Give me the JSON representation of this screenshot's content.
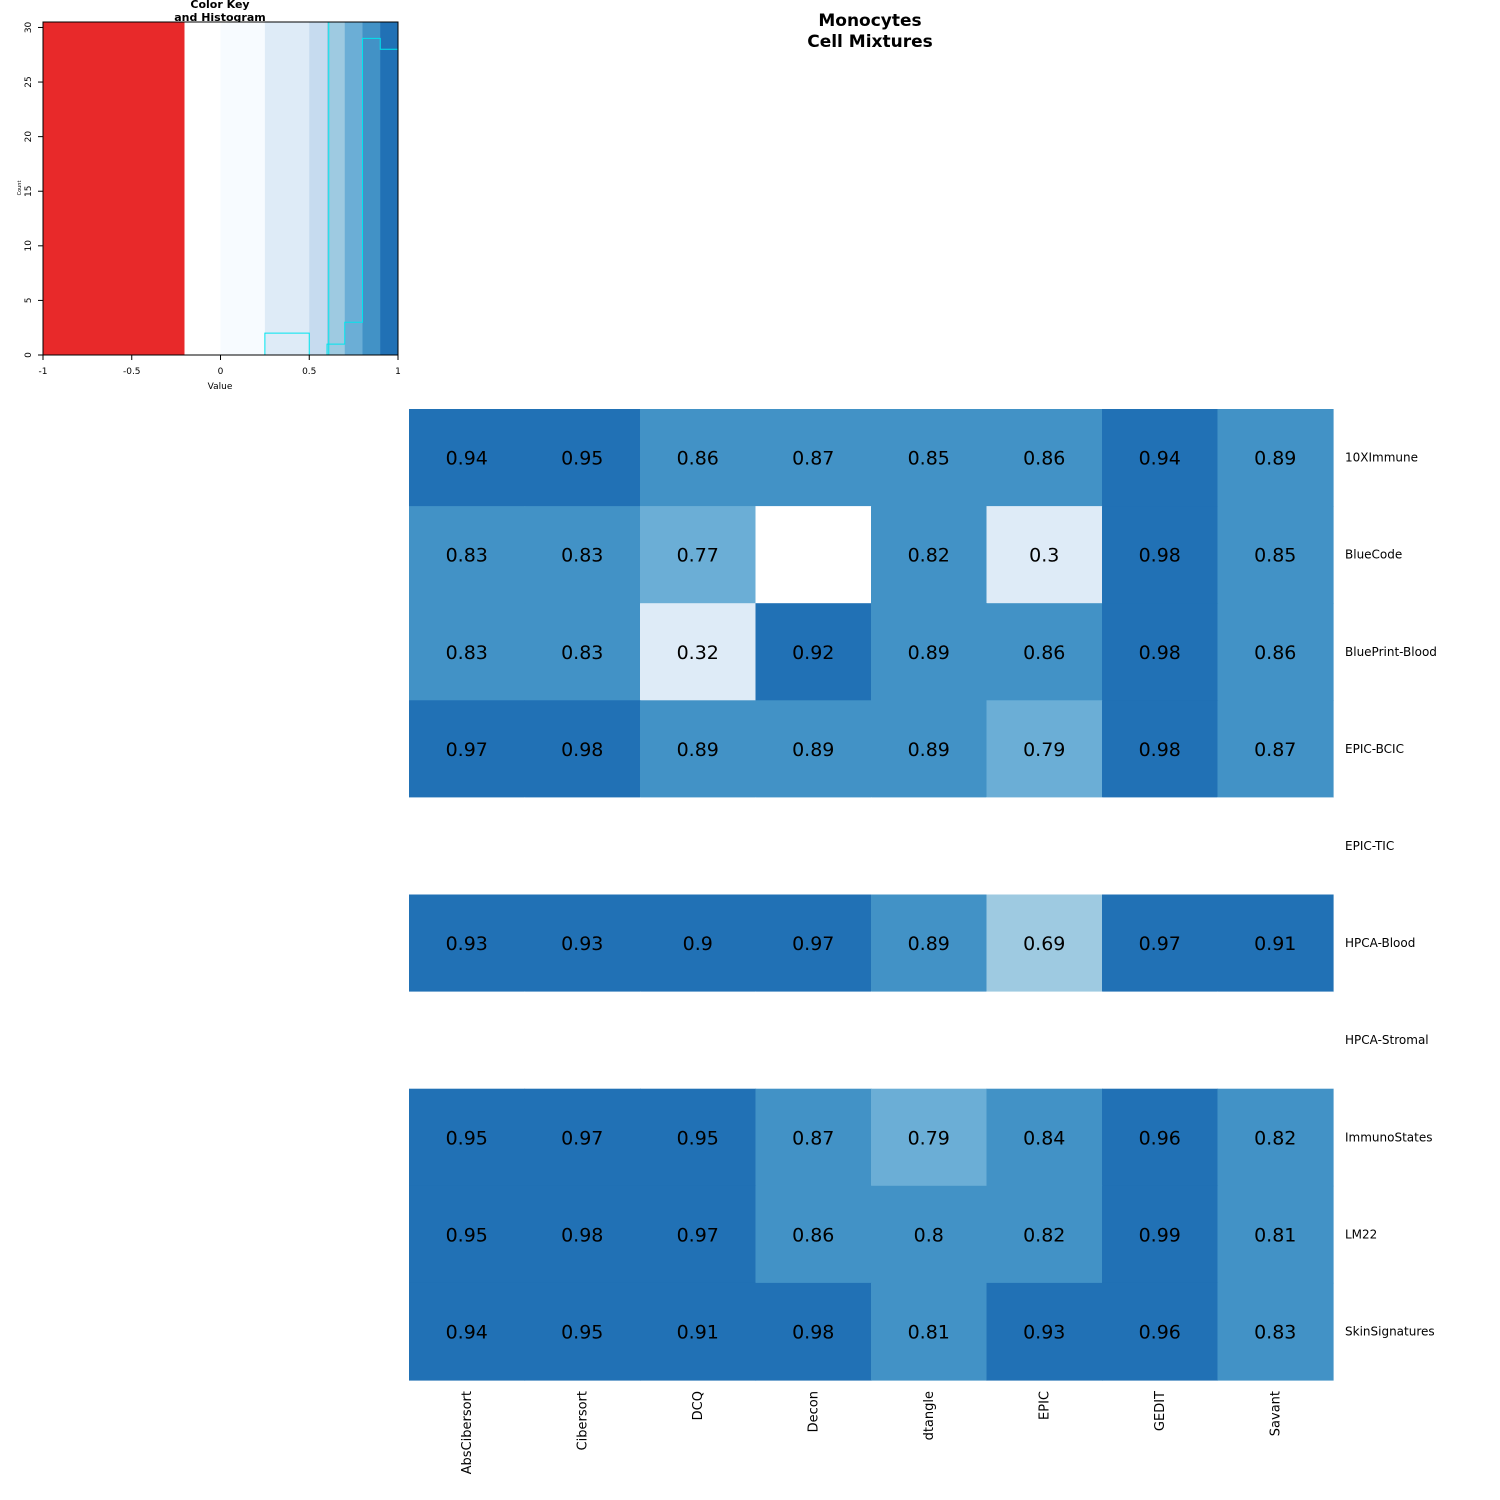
{
  "title_line1": "Monocytes",
  "title_line2": "Cell Mixtures",
  "chart_data": [
    {
      "type": "heatmap",
      "title": "Monocytes Cell Mixtures",
      "columns": [
        "AbsCibersort",
        "Cibersort",
        "DCQ",
        "Decon",
        "dtangle",
        "EPIC",
        "GEDIT",
        "Savant"
      ],
      "rows": [
        "10XImmune",
        "BlueCode",
        "BluePrint-Blood",
        "EPIC-BCIC",
        "EPIC-TIC",
        "HPCA-Blood",
        "HPCA-Stromal",
        "ImmunoStates",
        "LM22",
        "SkinSignatures"
      ],
      "values": [
        [
          0.94,
          0.95,
          0.86,
          0.87,
          0.85,
          0.86,
          0.94,
          0.89
        ],
        [
          0.83,
          0.83,
          0.77,
          null,
          0.82,
          0.3,
          0.98,
          0.85
        ],
        [
          0.83,
          0.83,
          0.32,
          0.92,
          0.89,
          0.86,
          0.98,
          0.86
        ],
        [
          0.97,
          0.98,
          0.89,
          0.89,
          0.89,
          0.79,
          0.98,
          0.87
        ],
        [
          null,
          null,
          null,
          null,
          null,
          null,
          null,
          null
        ],
        [
          0.93,
          0.93,
          0.9,
          0.97,
          0.89,
          0.69,
          0.97,
          0.91
        ],
        [
          null,
          null,
          null,
          null,
          null,
          null,
          null,
          null
        ],
        [
          0.95,
          0.97,
          0.95,
          0.87,
          0.79,
          0.84,
          0.96,
          0.82
        ],
        [
          0.95,
          0.98,
          0.97,
          0.86,
          0.8,
          0.82,
          0.99,
          0.81
        ],
        [
          0.94,
          0.95,
          0.91,
          0.98,
          0.81,
          0.93,
          0.96,
          0.83
        ]
      ],
      "color_breaks": [
        -1,
        -0.2,
        0,
        0.25,
        0.5,
        0.6,
        0.7,
        0.8,
        0.9,
        1
      ],
      "colors": [
        "#e8292a",
        "#ffffff",
        "#f7fbff",
        "#deebf7",
        "#c6dbef",
        "#9ecae1",
        "#6baed6",
        "#4292c6",
        "#2171b5"
      ],
      "missing_color": "#ffffff"
    },
    {
      "type": "histogram",
      "title": "Color Key\nand Histogram",
      "xlabel": "Value",
      "ylabel": "Count",
      "xlim": [
        -1,
        1
      ],
      "ylim": [
        0,
        30.5
      ],
      "x_ticks": [
        "-1",
        "-0.5",
        "0",
        "0.5",
        "1"
      ],
      "y_ticks": [
        "0",
        "5",
        "10",
        "15",
        "20",
        "25",
        "30"
      ],
      "bin_edges": [
        -1,
        -0.2,
        0,
        0.25,
        0.5,
        0.6,
        0.7,
        0.8,
        0.9,
        1
      ],
      "counts": [
        0,
        0,
        0,
        2,
        0,
        1,
        3,
        29,
        28
      ],
      "mean_line": 0.61,
      "histogram_color": "#00e5ee"
    }
  ]
}
